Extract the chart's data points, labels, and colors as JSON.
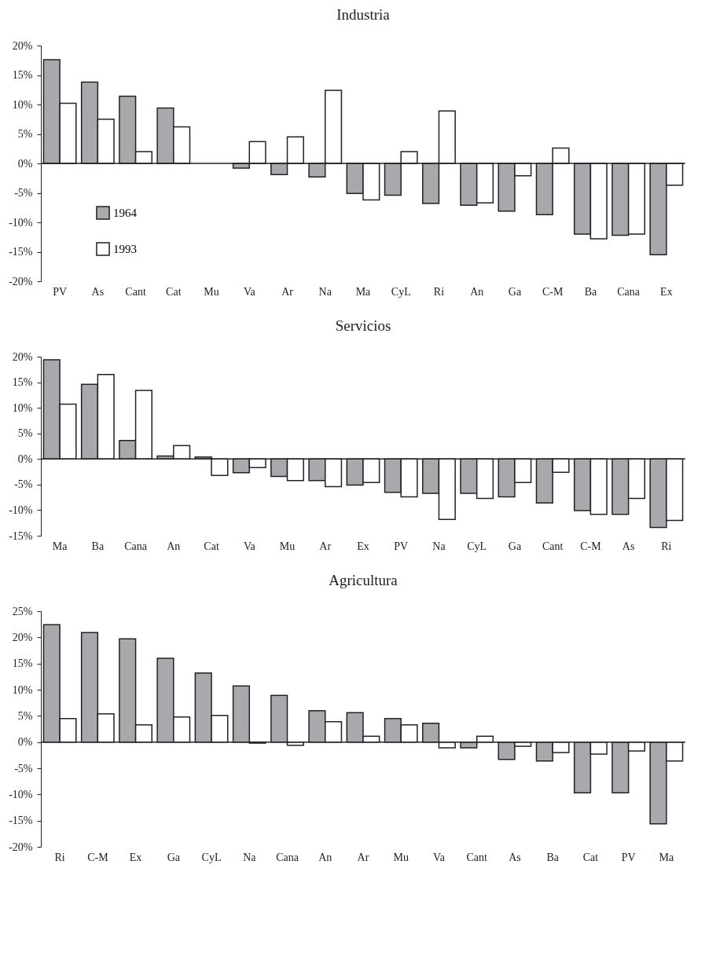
{
  "chart_data": [
    {
      "type": "bar",
      "title": "Industria",
      "categories": [
        "PV",
        "As",
        "Cant",
        "Cat",
        "Mu",
        "Va",
        "Ar",
        "Na",
        "Ma",
        "CyL",
        "Ri",
        "An",
        "Ga",
        "C-M",
        "Ba",
        "Cana",
        "Ex"
      ],
      "series": [
        {
          "name": "1964",
          "color": "#a7a9ac",
          "values": [
            17.6,
            13.8,
            11.4,
            9.4,
            0,
            -0.8,
            -1.9,
            -2.3,
            -5.1,
            -5.4,
            -6.8,
            -7.1,
            -8.1,
            -8.7,
            -12.0,
            -12.2,
            -15.5
          ]
        },
        {
          "name": "1993",
          "color": "#ffffff",
          "values": [
            10.2,
            7.5,
            2.0,
            6.2,
            0,
            3.7,
            4.5,
            12.4,
            -6.2,
            2.0,
            8.9,
            -6.7,
            -2.1,
            2.6,
            -12.8,
            -12.0,
            -3.7
          ]
        }
      ],
      "ylim": [
        -20,
        20
      ],
      "yticks": [
        {
          "value": -20,
          "label": "-20%"
        },
        {
          "value": -15,
          "label": "-15%"
        },
        {
          "value": -10,
          "label": "-10%"
        },
        {
          "value": -5,
          "label": "-5%"
        },
        {
          "value": 0,
          "label": "0%"
        },
        {
          "value": 5,
          "label": "5%"
        },
        {
          "value": 10,
          "label": "10%"
        },
        {
          "value": 15,
          "label": "15%"
        },
        {
          "value": 20,
          "label": "20%"
        }
      ],
      "legend": "bottom left"
    },
    {
      "type": "bar",
      "title": "Servicios",
      "categories": [
        "Ma",
        "Ba",
        "Cana",
        "An",
        "Cat",
        "Va",
        "Mu",
        "Ar",
        "Ex",
        "PV",
        "Na",
        "CyL",
        "Ga",
        "Cant",
        "C-M",
        "As",
        "Ri"
      ],
      "series": [
        {
          "color": "#a7a9ac",
          "values": [
            19.4,
            14.6,
            3.6,
            0.6,
            0.4,
            -2.7,
            -3.4,
            -4.2,
            -5.1,
            -6.5,
            -6.7,
            -6.7,
            -7.4,
            -8.6,
            -10.1,
            -10.8,
            -13.4
          ]
        },
        {
          "color": "#ffffff",
          "values": [
            10.7,
            16.5,
            13.4,
            2.6,
            -3.2,
            -1.7,
            -4.2,
            -5.4,
            -4.6,
            -7.4,
            -11.8,
            -7.7,
            -4.6,
            -2.6,
            -10.8,
            -7.7,
            -12.0
          ]
        }
      ],
      "ylim": [
        -15,
        20
      ],
      "yticks": [
        {
          "value": -15,
          "label": "-15%"
        },
        {
          "value": -10,
          "label": "-10%"
        },
        {
          "value": -5,
          "label": "-5%"
        },
        {
          "value": 0,
          "label": "0%"
        },
        {
          "value": 5,
          "label": "5%"
        },
        {
          "value": 10,
          "label": "10%"
        },
        {
          "value": 15,
          "label": "15%"
        },
        {
          "value": 20,
          "label": "20%"
        }
      ]
    },
    {
      "type": "bar",
      "title": "Agricultura",
      "categories": [
        "Ri",
        "C-M",
        "Ex",
        "Ga",
        "CyL",
        "Na",
        "Cana",
        "An",
        "Ar",
        "Mu",
        "Va",
        "Cant",
        "As",
        "Ba",
        "Cat",
        "PV",
        "Ma"
      ],
      "series": [
        {
          "color": "#a7a9ac",
          "values": [
            22.4,
            20.9,
            19.7,
            16.0,
            13.2,
            10.7,
            8.9,
            6.0,
            5.6,
            4.5,
            3.6,
            -1.1,
            -3.3,
            -3.6,
            -9.7,
            -9.7,
            -15.6
          ]
        },
        {
          "color": "#ffffff",
          "values": [
            4.5,
            5.4,
            3.3,
            4.8,
            5.1,
            -0.2,
            -0.6,
            3.9,
            1.1,
            3.3,
            -1.1,
            1.1,
            -0.8,
            -2.0,
            -2.3,
            -1.7,
            -3.6
          ]
        }
      ],
      "ylim": [
        -20,
        25
      ],
      "yticks": [
        {
          "value": -20,
          "label": "-20%"
        },
        {
          "value": -15,
          "label": "-15%"
        },
        {
          "value": -10,
          "label": "-10%"
        },
        {
          "value": -5,
          "label": "-5%"
        },
        {
          "value": 0,
          "label": "0%"
        },
        {
          "value": 5,
          "label": "5%"
        },
        {
          "value": 10,
          "label": "10%"
        },
        {
          "value": 15,
          "label": "15%"
        },
        {
          "value": 20,
          "label": "20%"
        },
        {
          "value": 25,
          "label": "25%"
        }
      ]
    }
  ]
}
